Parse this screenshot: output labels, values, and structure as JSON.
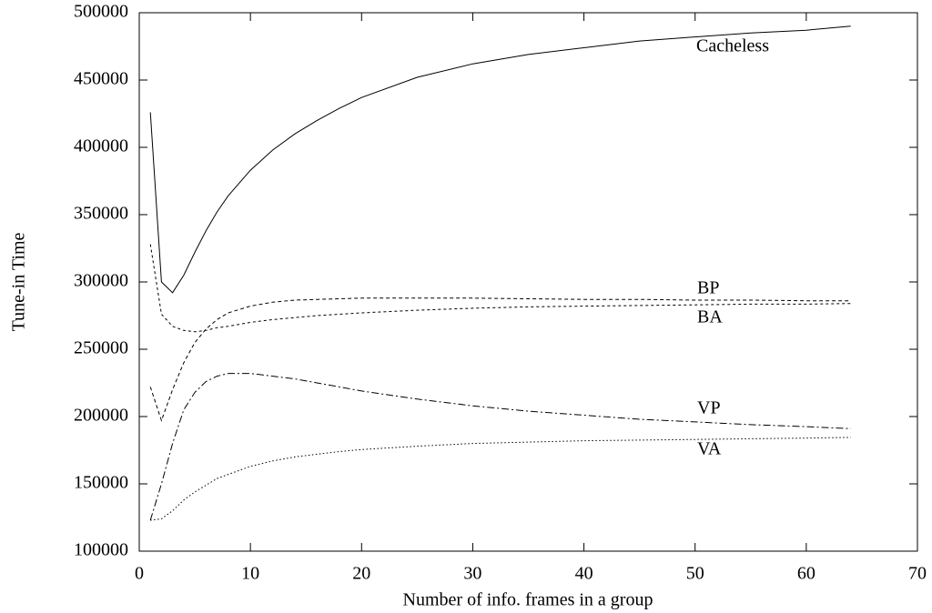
{
  "chart_data": {
    "type": "line",
    "x_label": "Number of info. frames in a group",
    "y_label": "Tune-in Time",
    "x": [
      1,
      2,
      3,
      4,
      5,
      6,
      7,
      8,
      10,
      12,
      14,
      16,
      18,
      20,
      25,
      30,
      35,
      40,
      45,
      50,
      55,
      60,
      64
    ],
    "series": [
      {
        "name": "Cacheless",
        "color": "#000000",
        "dash": "none",
        "values": [
          426000,
          300000,
          292000,
          305000,
          322000,
          338000,
          352000,
          364000,
          383000,
          398000,
          410000,
          420000,
          429000,
          437000,
          452000,
          462000,
          469000,
          474000,
          479000,
          482000,
          485000,
          487000,
          490000
        ]
      },
      {
        "name": "BP",
        "color": "#000000",
        "dash": "4,3",
        "values": [
          222000,
          197000,
          220000,
          240000,
          255000,
          265000,
          272000,
          277000,
          282000,
          285000,
          286500,
          287000,
          287500,
          288000,
          288000,
          288000,
          287500,
          287000,
          287000,
          286500,
          286500,
          286000,
          286000
        ]
      },
      {
        "name": "BA",
        "color": "#000000",
        "dash": "3,3",
        "values": [
          328000,
          276000,
          267000,
          264000,
          263000,
          264000,
          266000,
          267000,
          270000,
          272000,
          273500,
          275000,
          276000,
          277000,
          279000,
          280500,
          281500,
          282000,
          282500,
          283000,
          283500,
          283500,
          284000
        ]
      },
      {
        "name": "VP",
        "color": "#000000",
        "dash": "8,3,2,3",
        "values": [
          123000,
          150000,
          180000,
          205000,
          218000,
          226000,
          230000,
          232000,
          232000,
          230000,
          228000,
          225000,
          222000,
          219000,
          213000,
          208000,
          204000,
          201000,
          198000,
          196000,
          194000,
          192500,
          191000
        ]
      },
      {
        "name": "VA",
        "color": "#000000",
        "dash": "1.5,2.5",
        "values": [
          123000,
          124000,
          130000,
          138000,
          144000,
          149000,
          154000,
          157000,
          163000,
          167000,
          170000,
          172000,
          174000,
          175500,
          178000,
          180000,
          181000,
          182000,
          182500,
          183000,
          183500,
          184000,
          184500
        ]
      }
    ],
    "xlim": [
      0,
      70
    ],
    "ylim": [
      100000,
      500000
    ],
    "xticks": [
      0,
      10,
      20,
      30,
      40,
      50,
      60,
      70
    ],
    "yticks": [
      100000,
      150000,
      200000,
      250000,
      300000,
      350000,
      400000,
      450000,
      500000
    ]
  }
}
